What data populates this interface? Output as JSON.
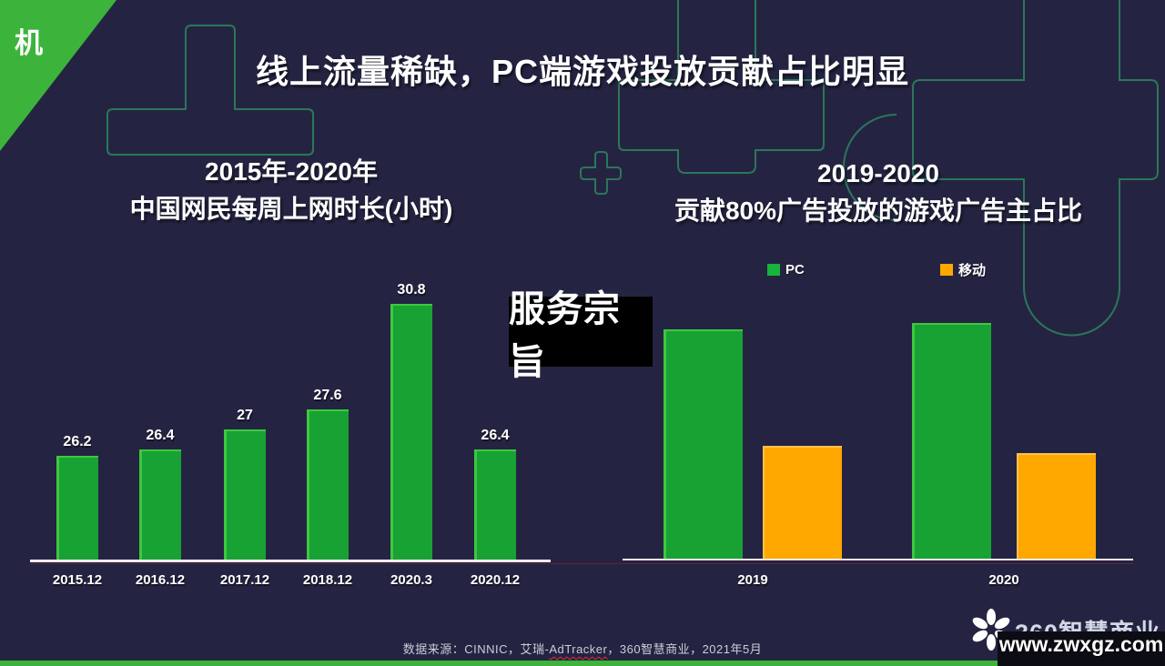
{
  "corner": {
    "label": "机"
  },
  "title": "线上流量稀缺，PC端游戏投放贡献占比明显",
  "overlay": {
    "text": "服务宗旨"
  },
  "chart_data": [
    {
      "type": "bar",
      "title_line1": "2015年-2020年",
      "title_line2": "中国网民每周上网时长(小时)",
      "categories": [
        "2015.12",
        "2016.12",
        "2017.12",
        "2018.12",
        "2020.3",
        "2020.12"
      ],
      "values": [
        26.2,
        26.4,
        27,
        27.6,
        30.8,
        26.4
      ],
      "data_labels": [
        "26.2",
        "26.4",
        "27",
        "27.6",
        "30.8",
        "26.4"
      ],
      "ylim": [
        23,
        31
      ],
      "bar_color": "#17a233",
      "grid": false,
      "legend": "none"
    },
    {
      "type": "bar",
      "title_line1": "2019-2020",
      "title_line2": "贡献80%广告投放的游戏广告主占比",
      "categories": [
        "2019",
        "2020"
      ],
      "series": [
        {
          "name": "PC",
          "color": "#17a233",
          "values": [
            67,
            69
          ]
        },
        {
          "name": "移动",
          "color": "#ffa800",
          "values": [
            33,
            31
          ]
        }
      ],
      "ylim": [
        0,
        75
      ],
      "grid": false,
      "legend_position": "top"
    }
  ],
  "source": {
    "prefix": "数据来源：CINNIC，艾瑞-",
    "underlined": "AdTracker",
    "suffix": "，360智慧商业，2021年5月"
  },
  "footer": {
    "brand": "360智慧商业",
    "watermark": "www.zwxgz.com"
  },
  "colors": {
    "background": "#242442",
    "bar_green": "#17a233",
    "bar_orange": "#ffa800",
    "corner_green": "#3cb43c",
    "decor_outline_green": "#2e8b5f",
    "axis": "#edecf5",
    "bottom_strip": "#3cb43c"
  }
}
